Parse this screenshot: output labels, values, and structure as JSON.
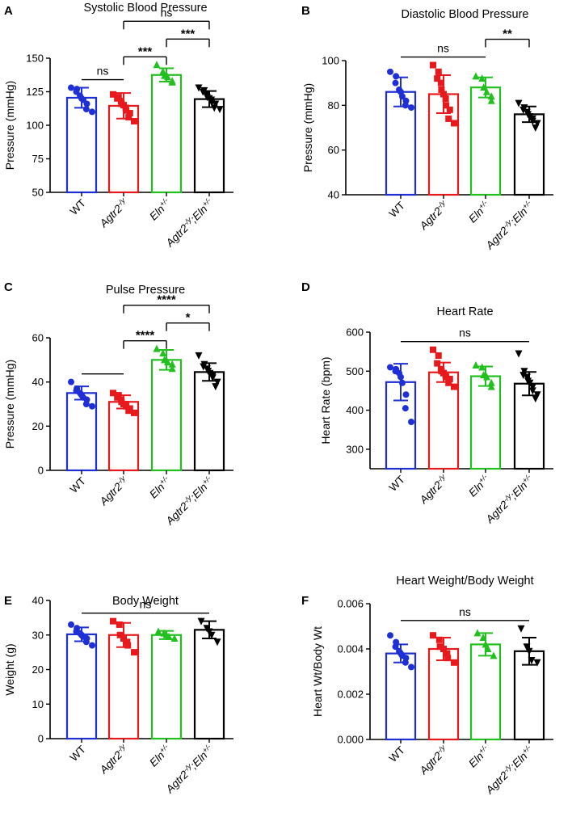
{
  "chart_data": [
    {
      "type": "bar",
      "panel_label": "A",
      "title": "Systolic Blood Pressure",
      "ylabel": "Pressure (mmHg)",
      "ylim": [
        50,
        150
      ],
      "yticks": [
        "50",
        "75",
        "100",
        "125",
        "150"
      ],
      "categories": [
        "WT",
        "Agtr2",
        "Eln",
        "Agtr2;Eln"
      ],
      "category_labels": [
        {
          "main": "WT",
          "sup": ""
        },
        {
          "main": "Agtr2",
          "sup": "-/y"
        },
        {
          "main": "Eln",
          "sup": "+/-"
        },
        {
          "main": "Agtr2",
          "sup": "-/y",
          "main2": ";Eln",
          "sup2": "+/-"
        }
      ],
      "values": [
        120.5,
        114.5,
        137.5,
        119.5
      ],
      "errors": [
        7.5,
        9.5,
        5.0,
        6.0
      ],
      "points": [
        [
          128,
          127,
          125,
          122,
          120,
          119,
          116,
          112,
          110
        ],
        [
          123,
          121,
          120,
          118,
          116,
          115,
          113,
          111,
          109,
          106,
          103
        ],
        [
          145,
          140,
          137,
          136,
          133,
          132
        ],
        [
          128,
          126,
          125,
          123,
          121,
          120,
          119,
          117,
          116,
          113,
          112
        ]
      ],
      "comparisons": [
        {
          "from": 0,
          "to": 1,
          "label": "ns"
        },
        {
          "from": 1,
          "to": 2,
          "label": "***"
        },
        {
          "from": 2,
          "to": 3,
          "label": "***"
        },
        {
          "from": 1,
          "to": 3,
          "label": "ns"
        }
      ]
    },
    {
      "type": "bar",
      "panel_label": "B",
      "title": "Diastolic Blood Pressure",
      "ylabel": "Pressure (mmHg)",
      "ylim": [
        40,
        100
      ],
      "yticks": [
        "40",
        "60",
        "80",
        "100"
      ],
      "categories": [
        "WT",
        "Agtr2",
        "Eln",
        "Agtr2;Eln"
      ],
      "category_labels": [
        {
          "main": "WT",
          "sup": ""
        },
        {
          "main": "Agtr2",
          "sup": "-/y"
        },
        {
          "main": "Eln",
          "sup": "+/-"
        },
        {
          "main": "Agtr2",
          "sup": "-/y",
          "main2": ";Eln",
          "sup2": "+/-"
        }
      ],
      "values": [
        86,
        85,
        88,
        76
      ],
      "errors": [
        6.5,
        8.5,
        4.5,
        3.5
      ],
      "points": [
        [
          95,
          93,
          90,
          87,
          86,
          84,
          82,
          80,
          79
        ],
        [
          98,
          95,
          92,
          90,
          87,
          85,
          83,
          80,
          78,
          74,
          72
        ],
        [
          93,
          92,
          88,
          86,
          84,
          82
        ],
        [
          81,
          79,
          78,
          77,
          76,
          75,
          74,
          73,
          72,
          70
        ]
      ],
      "comparisons": [
        {
          "from": 0,
          "to": 2,
          "label": "ns"
        },
        {
          "from": 2,
          "to": 3,
          "label": "**"
        }
      ]
    },
    {
      "type": "bar",
      "panel_label": "C",
      "title": "Pulse Pressure",
      "ylabel": "Pressure (mmHg)",
      "ylim": [
        0,
        60
      ],
      "yticks": [
        "0",
        "20",
        "40",
        "60"
      ],
      "categories": [
        "WT",
        "Agtr2",
        "Eln",
        "Agtr2;Eln"
      ],
      "category_labels": [
        {
          "main": "WT",
          "sup": ""
        },
        {
          "main": "Agtr2",
          "sup": "-/y"
        },
        {
          "main": "Eln",
          "sup": "+/-"
        },
        {
          "main": "Agtr2",
          "sup": "-/y",
          "main2": ";Eln",
          "sup2": "+/-"
        }
      ],
      "values": [
        35,
        31,
        50,
        44.5
      ],
      "errors": [
        3.0,
        3.0,
        4.5,
        4.0
      ],
      "points": [
        [
          40,
          37,
          36,
          35,
          34,
          33,
          32,
          30,
          29
        ],
        [
          35,
          34,
          33,
          32,
          31,
          30,
          30,
          29,
          28,
          27,
          26
        ],
        [
          55,
          53,
          50,
          49,
          48,
          46
        ],
        [
          52,
          48,
          47,
          46,
          45,
          44,
          43,
          42,
          40,
          38
        ]
      ],
      "comparisons": [
        {
          "from": 0,
          "to": 1,
          "label": ""
        },
        {
          "from": 1,
          "to": 2,
          "label": "****"
        },
        {
          "from": 2,
          "to": 3,
          "label": "*"
        },
        {
          "from": 1,
          "to": 3,
          "label": "****"
        }
      ]
    },
    {
      "type": "bar",
      "panel_label": "D",
      "title": "Heart Rate",
      "ylabel": "Heart Rate (bpm)",
      "ylim": [
        250,
        600
      ],
      "yticks": [
        "300",
        "400",
        "500",
        "600"
      ],
      "categories": [
        "WT",
        "Agtr2",
        "Eln",
        "Agtr2;Eln"
      ],
      "category_labels": [
        {
          "main": "WT",
          "sup": ""
        },
        {
          "main": "Agtr2",
          "sup": "-/y"
        },
        {
          "main": "Eln",
          "sup": "+/-"
        },
        {
          "main": "Agtr2",
          "sup": "-/y",
          "main2": ";Eln",
          "sup2": "+/-"
        }
      ],
      "values": [
        472,
        497,
        487,
        468
      ],
      "errors": [
        47,
        25,
        25,
        30
      ],
      "points": [
        [
          510,
          505,
          500,
          495,
          485,
          470,
          440,
          405,
          370
        ],
        [
          555,
          540,
          520,
          505,
          500,
          495,
          490,
          485,
          480,
          470,
          460
        ],
        [
          515,
          510,
          490,
          485,
          470,
          460
        ],
        [
          545,
          500,
          490,
          485,
          475,
          470,
          460,
          450,
          440,
          430
        ]
      ],
      "comparisons": [
        {
          "from": 0,
          "to": 3,
          "label": "ns"
        }
      ]
    },
    {
      "type": "bar",
      "panel_label": "E",
      "title": "Body Weight",
      "ylabel": "Weight (g)",
      "ylim": [
        0,
        40
      ],
      "yticks": [
        "0",
        "10",
        "20",
        "30",
        "40"
      ],
      "categories": [
        "WT",
        "Agtr2",
        "Eln",
        "Agtr2;Eln"
      ],
      "category_labels": [
        {
          "main": "WT",
          "sup": ""
        },
        {
          "main": "Agtr2",
          "sup": "-/y"
        },
        {
          "main": "Eln",
          "sup": "+/-"
        },
        {
          "main": "Agtr2",
          "sup": "-/y",
          "main2": ";Eln",
          "sup2": "+/-"
        }
      ],
      "values": [
        30.2,
        30.0,
        30.0,
        31.5
      ],
      "errors": [
        2.0,
        3.5,
        1.2,
        2.5
      ],
      "points": [
        [
          33,
          32,
          31,
          30.5,
          30,
          29.5,
          29,
          28,
          27
        ],
        [
          34,
          33,
          30,
          29,
          28,
          27,
          25
        ],
        [
          31,
          30.5,
          30,
          29.5,
          29
        ],
        [
          34,
          32,
          31,
          30,
          28
        ]
      ],
      "comparisons": [
        {
          "from": 0,
          "to": 3,
          "label": "ns"
        }
      ]
    },
    {
      "type": "bar",
      "panel_label": "F",
      "title": "Heart Weight/Body Weight",
      "ylabel": "Heart Wt/Body Wt",
      "ylim": [
        0,
        0.006
      ],
      "yticks": [
        "0.000",
        "0.002",
        "0.004",
        "0.006"
      ],
      "categories": [
        "WT",
        "Agtr2",
        "Eln",
        "Agtr2;Eln"
      ],
      "category_labels": [
        {
          "main": "WT",
          "sup": ""
        },
        {
          "main": "Agtr2",
          "sup": "-/y"
        },
        {
          "main": "Eln",
          "sup": "+/-"
        },
        {
          "main": "Agtr2",
          "sup": "-/y",
          "main2": ";Eln",
          "sup2": "+/-"
        }
      ],
      "values": [
        0.0038,
        0.004,
        0.0042,
        0.0039
      ],
      "errors": [
        0.0004,
        0.0005,
        0.0005,
        0.0006
      ],
      "points": [
        [
          0.0046,
          0.0043,
          0.0041,
          0.0039,
          0.0038,
          0.0037,
          0.0036,
          0.0034,
          0.0032
        ],
        [
          0.0046,
          0.0044,
          0.0041,
          0.004,
          0.0038,
          0.0036,
          0.0034
        ],
        [
          0.0047,
          0.0045,
          0.0042,
          0.004,
          0.0037
        ],
        [
          0.0049,
          0.0041,
          0.0039,
          0.0035,
          0.0034
        ]
      ],
      "comparisons": [
        {
          "from": 0,
          "to": 3,
          "label": "ns"
        }
      ]
    }
  ],
  "colors": {
    "groups": [
      "#1f2fd6",
      "#e8191c",
      "#22c01e",
      "#000000"
    ]
  },
  "markers": [
    "circle",
    "square",
    "triangle-up",
    "triangle-down"
  ]
}
